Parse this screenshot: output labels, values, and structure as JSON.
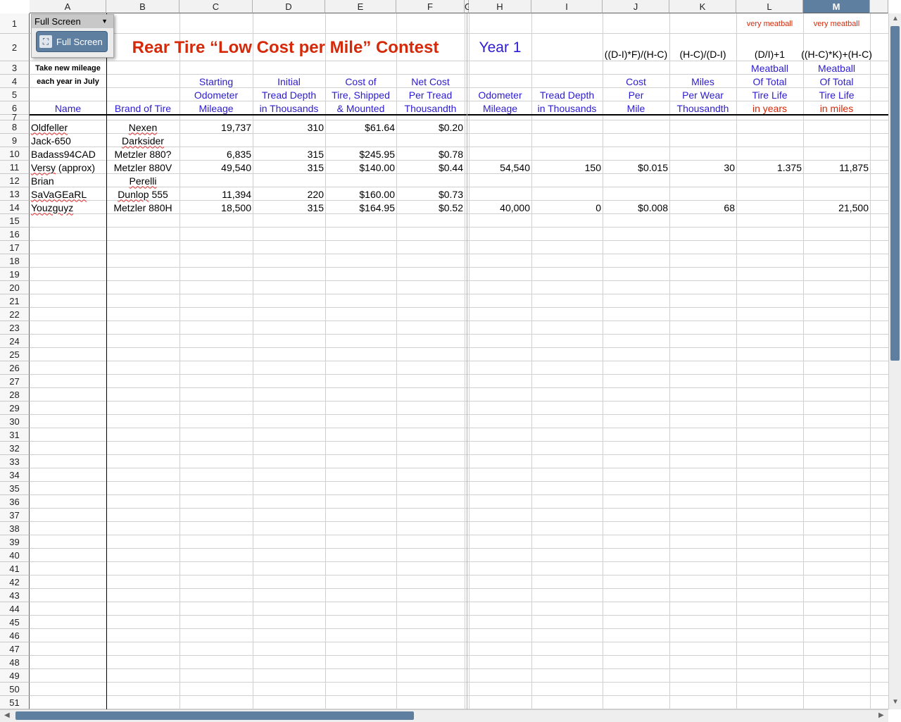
{
  "toolbar_popup": {
    "title": "Full Screen",
    "button_label": "Full Screen",
    "icon": "fullscreen-icon"
  },
  "columns": [
    "A",
    "B",
    "C",
    "D",
    "E",
    "F",
    "G",
    "H",
    "I",
    "J",
    "K",
    "L",
    "M",
    ""
  ],
  "selected_column": "M",
  "sheet": {
    "title": "Rear Tire “Low Cost per Mile” Contest",
    "year": "Year 1",
    "note_line1": "Take new mileage",
    "note_line2": "each year in July",
    "remarks": {
      "L": "very meatball",
      "M": "very meatball"
    },
    "formulas": {
      "J": "((D-I)*F)/(H-C)",
      "K": "(H-C)/(D-I)",
      "L": "(D/I)+1",
      "M": "((H-C)*K)+(H-C)"
    },
    "headers": {
      "A": [
        "",
        "",
        "",
        "Name"
      ],
      "B": [
        "",
        "",
        "",
        "Brand of Tire"
      ],
      "C": [
        "",
        "Starting",
        "Odometer",
        "Mileage"
      ],
      "D": [
        "",
        "Initial",
        "Tread Depth",
        "in Thousands"
      ],
      "E": [
        "",
        "Cost of",
        "Tire, Shipped",
        "& Mounted"
      ],
      "F": [
        "",
        "Net Cost",
        "Per Tread",
        "Thousandth"
      ],
      "H": [
        "",
        "",
        "Odometer",
        "Mileage"
      ],
      "I": [
        "",
        "",
        "Tread Depth",
        "in Thousands"
      ],
      "J": [
        "",
        "Cost",
        "Per",
        "Mile"
      ],
      "K": [
        "",
        "Miles",
        "Per Wear",
        "Thousandth"
      ],
      "L": [
        "Meatball",
        "Of Total",
        "Tire Life",
        "in years"
      ],
      "M": [
        "Meatball",
        "Of Total",
        "Tire Life",
        "in miles"
      ]
    },
    "rows": [
      {
        "row": 8,
        "cells": {
          "A": "Oldfeller",
          "B": "Nexen",
          "C": "19,737",
          "D": "310",
          "E": "$61.64",
          "F": "$0.20"
        }
      },
      {
        "row": 9,
        "cells": {
          "A": "Jack-650",
          "B": "Darksider"
        }
      },
      {
        "row": 10,
        "cells": {
          "A": "Badass94CAD",
          "B": "Metzler 880?",
          "C": "6,835",
          "D": "315",
          "E": "$245.95",
          "F": "$0.78"
        }
      },
      {
        "row": 11,
        "cells": {
          "A": "Versy (approx)",
          "B": "Metzler 880V",
          "C": "49,540",
          "D": "315",
          "E": "$140.00",
          "F": "$0.44",
          "H": "54,540",
          "I": "150",
          "J": "$0.015",
          "K": "30",
          "L": "1.375",
          "M": "11,875"
        }
      },
      {
        "row": 12,
        "cells": {
          "A": "Brian",
          "B": "Perelli"
        }
      },
      {
        "row": 13,
        "cells": {
          "A": "SaVaGEaRL",
          "B": "Dunlop 555",
          "C": "11,394",
          "D": "220",
          "E": "$160.00",
          "F": "$0.73"
        }
      },
      {
        "row": 14,
        "cells": {
          "A": "Youzguyz",
          "B": "Metzler 880H",
          "C": "18,500",
          "D": "315",
          "E": "$164.95",
          "F": "$0.52",
          "H": "40,000",
          "I": "0",
          "J": "$0.008",
          "K": "68",
          "M": "21,500"
        }
      }
    ],
    "spellcheck_flagged": [
      "Oldfeller",
      "Nexen",
      "Darksider",
      "Versy",
      "Perelli",
      "SaVaGEaRL",
      "Dunlop",
      "Youzguyz"
    ]
  },
  "colors": {
    "header_blue": "#2c1bd0",
    "title_red": "#d52a0a",
    "selection": "#5f7fa0"
  }
}
